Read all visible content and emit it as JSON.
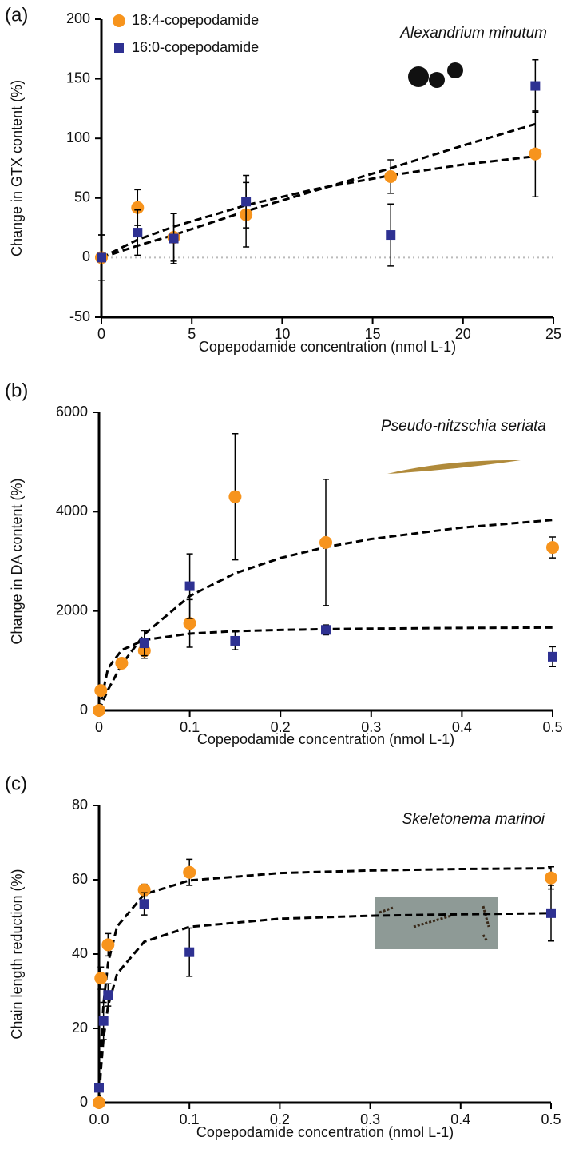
{
  "chart_data": [
    {
      "type": "scatter",
      "panel_label": "(a)",
      "title": "Alexandrium minutum",
      "xlabel": "Copepodamide concentration (nmol L-1)",
      "ylabel": "Change in GTX content (%)",
      "xlim": [
        0,
        25
      ],
      "ylim": [
        -50,
        200
      ],
      "xticks": [
        0,
        5,
        10,
        15,
        20,
        25
      ],
      "yticks": [
        -50,
        0,
        50,
        100,
        150,
        200
      ],
      "zeroline": true,
      "legend": "top-left",
      "series": [
        {
          "name": "18:4-copepodamide",
          "color": "#f7941d",
          "marker": "circle",
          "x": [
            0,
            2,
            4,
            8,
            16,
            24
          ],
          "values": [
            0,
            42,
            17,
            36,
            68,
            87
          ],
          "errors": [
            19,
            15,
            20,
            27,
            14,
            36
          ]
        },
        {
          "name": "16:0-copepodamide",
          "color": "#2e3192",
          "marker": "square",
          "x": [
            0,
            2,
            4,
            8,
            16,
            24
          ],
          "values": [
            0,
            21,
            16,
            47,
            19,
            144
          ],
          "errors": [
            19,
            19,
            21,
            22,
            26,
            22
          ]
        }
      ],
      "fits": [
        {
          "x": [
            0,
            2,
            4,
            8,
            12,
            16,
            20,
            24
          ],
          "values": [
            0,
            15,
            26,
            44,
            58,
            69,
            78,
            85
          ]
        },
        {
          "x": [
            0,
            2,
            4,
            8,
            12,
            16,
            20,
            24
          ],
          "values": [
            0,
            10,
            19,
            39,
            57,
            75,
            94,
            112
          ]
        }
      ]
    },
    {
      "type": "scatter",
      "panel_label": "(b)",
      "title": "Pseudo-nitzschia seriata",
      "xlabel": "Copepodamide concentration (nmol L-1)",
      "ylabel": "Change in DA content (%)",
      "xlim": [
        0,
        0.5
      ],
      "ylim": [
        0,
        6000
      ],
      "xticks": [
        0,
        0.1,
        0.2,
        0.3,
        0.4,
        0.5
      ],
      "yticks": [
        0,
        2000,
        4000,
        6000
      ],
      "series": [
        {
          "color": "#f7941d",
          "marker": "circle",
          "x": [
            0,
            0.002,
            0.025,
            0.05,
            0.1,
            0.15,
            0.25,
            0.5
          ],
          "values": [
            0,
            400,
            950,
            1200,
            1750,
            4300,
            3380,
            3280
          ],
          "errors": [
            0,
            0,
            0,
            150,
            480,
            1270,
            1270,
            210
          ]
        },
        {
          "color": "#2e3192",
          "marker": "square",
          "x": [
            0.05,
            0.1,
            0.15,
            0.25,
            0.5
          ],
          "values": [
            1350,
            2500,
            1400,
            1620,
            1080
          ],
          "errors": [
            250,
            650,
            180,
            100,
            200
          ]
        }
      ],
      "fits": [
        {
          "x": [
            0,
            0.01,
            0.025,
            0.05,
            0.1,
            0.15,
            0.2,
            0.25,
            0.3,
            0.4,
            0.5
          ],
          "values": [
            0,
            418,
            920,
            1533,
            2300,
            2760,
            3067,
            3286,
            3450,
            3680,
            3833
          ]
        },
        {
          "x": [
            0,
            0.01,
            0.025,
            0.05,
            0.1,
            0.15,
            0.2,
            0.25,
            0.3,
            0.4,
            0.5
          ],
          "values": [
            0,
            850,
            1214,
            1417,
            1545,
            1594,
            1619,
            1635,
            1645,
            1659,
            1667
          ]
        }
      ]
    },
    {
      "type": "scatter",
      "panel_label": "(c)",
      "title": "Skeletonema marinoi",
      "xlabel": "Copepodamide concentration (nmol L-1)",
      "ylabel": "Chain length reduction (%)",
      "xlim": [
        0,
        0.5
      ],
      "ylim": [
        0,
        80
      ],
      "xticks": [
        {
          "value": 0,
          "label": "0.0"
        },
        0.1,
        0.2,
        0.3,
        0.4,
        0.5
      ],
      "yticks": [
        0,
        20,
        40,
        60,
        80
      ],
      "series": [
        {
          "color": "#f7941d",
          "marker": "circle",
          "x": [
            0,
            0.002,
            0.01,
            0.05,
            0.1,
            0.5
          ],
          "values": [
            0,
            33.5,
            42.5,
            57.3,
            62,
            60.5
          ],
          "errors": [
            0,
            3,
            3,
            1.5,
            3.5,
            3
          ]
        },
        {
          "color": "#2e3192",
          "marker": "square",
          "x": [
            0,
            0.005,
            0.01,
            0.05,
            0.1,
            0.5
          ],
          "values": [
            4,
            22,
            29,
            53.5,
            40.5,
            51
          ],
          "errors": [
            0,
            5,
            3,
            3,
            6.5,
            7.5
          ]
        }
      ],
      "fits": [
        {
          "x": [
            0,
            0.002,
            0.005,
            0.01,
            0.02,
            0.05,
            0.1,
            0.2,
            0.3,
            0.4,
            0.5
          ],
          "values": [
            0,
            14.2,
            26.7,
            37.6,
            47.4,
            56.1,
            59.8,
            61.8,
            62.5,
            62.9,
            63.1
          ]
        },
        {
          "x": [
            0,
            0.002,
            0.005,
            0.01,
            0.02,
            0.05,
            0.1,
            0.2,
            0.3,
            0.4,
            0.5
          ],
          "values": [
            0,
            8.7,
            17.3,
            26,
            34.7,
            43.3,
            47.3,
            49.5,
            50.3,
            50.7,
            51.0
          ]
        }
      ]
    }
  ]
}
